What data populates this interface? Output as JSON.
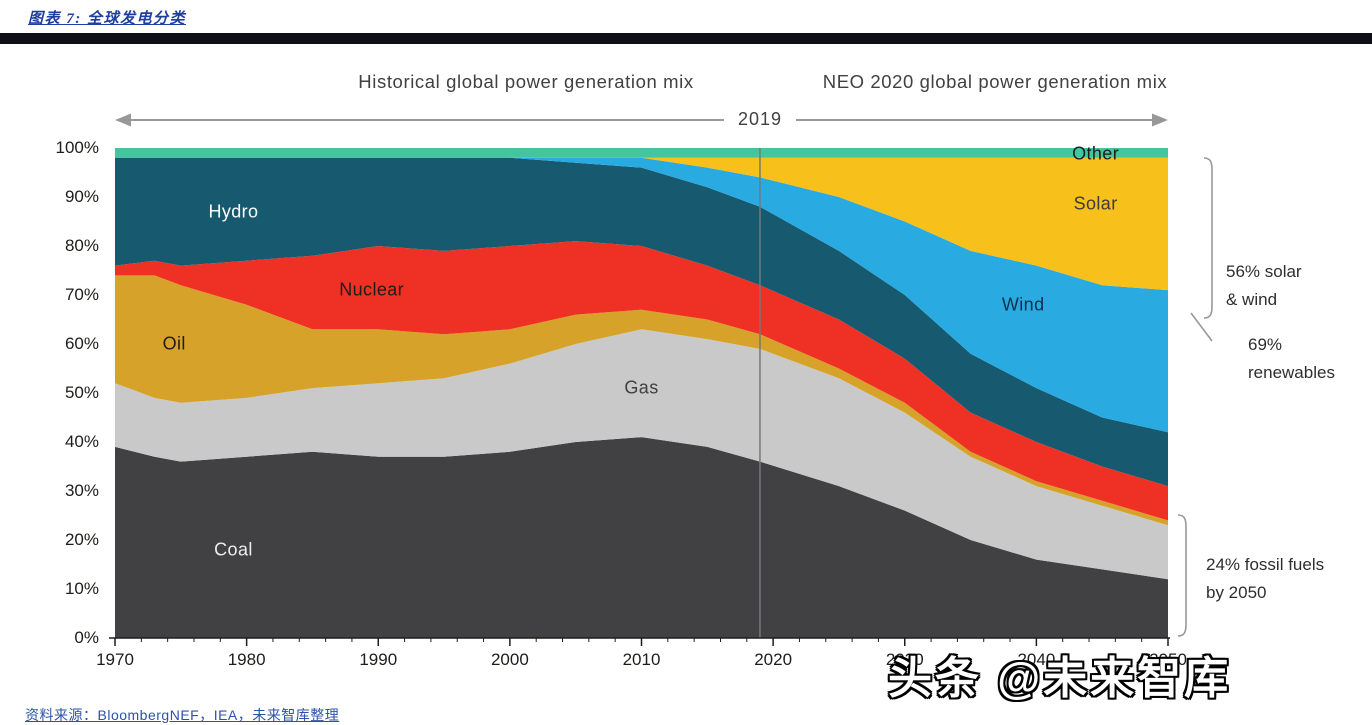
{
  "header": {
    "figure_title": "图表 7: 全球发电分类"
  },
  "chart_data": {
    "type": "area",
    "stacked": true,
    "title_left": "Historical global power generation mix",
    "title_right": "NEO 2020  global power generation mix",
    "divider_label": "2019",
    "divider_year": 2019,
    "xlim": [
      1970,
      2050
    ],
    "ylim": [
      0,
      100
    ],
    "x_ticks": [
      "1970",
      "1980",
      "1990",
      "2000",
      "2010",
      "2020",
      "2030",
      "2040",
      "2050"
    ],
    "y_ticks": [
      "100%",
      "90%",
      "80%",
      "70%",
      "60%",
      "50%",
      "40%",
      "30%",
      "20%",
      "10%",
      "0%"
    ],
    "x": [
      1970,
      1973,
      1975,
      1980,
      1985,
      1990,
      1995,
      2000,
      2005,
      2010,
      2015,
      2019,
      2025,
      2030,
      2035,
      2040,
      2045,
      2050
    ],
    "series": [
      {
        "name": "Coal",
        "color": "#414042",
        "values": [
          39,
          37,
          36,
          37,
          38,
          37,
          37,
          38,
          40,
          41,
          39,
          36,
          31,
          26,
          20,
          16,
          14,
          12
        ]
      },
      {
        "name": "Gas",
        "color": "#c9c9c9",
        "values": [
          13,
          12,
          12,
          12,
          13,
          15,
          16,
          18,
          20,
          22,
          22,
          23,
          22,
          20,
          17,
          15,
          13,
          11
        ]
      },
      {
        "name": "Oil",
        "color": "#d7a229",
        "values": [
          22,
          25,
          24,
          19,
          12,
          11,
          9,
          7,
          6,
          4,
          4,
          3,
          2,
          2,
          1,
          1,
          1,
          1
        ]
      },
      {
        "name": "Nuclear",
        "color": "#ee3124",
        "values": [
          2,
          3,
          4,
          9,
          15,
          17,
          17,
          17,
          15,
          13,
          11,
          10,
          10,
          9,
          8,
          8,
          7,
          7
        ]
      },
      {
        "name": "Hydro",
        "color": "#17596e",
        "values": [
          22,
          21,
          22,
          21,
          20,
          18,
          19,
          18,
          16,
          16,
          16,
          16,
          14,
          13,
          12,
          11,
          10,
          11
        ]
      },
      {
        "name": "Wind",
        "color": "#29abe2",
        "values": [
          0,
          0,
          0,
          0,
          0,
          0,
          0,
          0,
          1,
          2,
          4,
          6,
          11,
          15,
          21,
          25,
          27,
          29
        ]
      },
      {
        "name": "Solar",
        "color": "#f8c01a",
        "values": [
          0,
          0,
          0,
          0,
          0,
          0,
          0,
          0,
          0,
          0,
          2,
          4,
          8,
          13,
          19,
          22,
          26,
          27
        ]
      },
      {
        "name": "Other",
        "color": "#43c59e",
        "values": [
          2,
          2,
          2,
          2,
          2,
          2,
          2,
          2,
          2,
          2,
          2,
          2,
          2,
          2,
          2,
          2,
          2,
          2
        ]
      }
    ],
    "area_labels": [
      {
        "text": "Hydro",
        "x": 1979,
        "y": 87,
        "color": "#ffffff"
      },
      {
        "text": "Nuclear",
        "x": 1989.5,
        "y": 71,
        "color": "#1d1d1b"
      },
      {
        "text": "Oil",
        "x": 1974.5,
        "y": 60,
        "color": "#1d1d1b"
      },
      {
        "text": "Gas",
        "x": 2010,
        "y": 51,
        "color": "#414042"
      },
      {
        "text": "Coal",
        "x": 1979,
        "y": 18,
        "color": "#ededed"
      },
      {
        "text": "Wind",
        "x": 2039,
        "y": 68,
        "color": "#0d3050"
      },
      {
        "text": "Solar",
        "x": 2044.5,
        "y": 88.5,
        "color": "#3c3c3c"
      },
      {
        "text": "Other",
        "x": 2044.5,
        "y": 98.7,
        "color": "#1d1d1b"
      }
    ],
    "annotations": [
      {
        "text": "56% solar\n& wind"
      },
      {
        "text": "69%\nrenewables"
      },
      {
        "text": "24% fossil fuels\nby 2050"
      }
    ]
  },
  "footer": {
    "source_note": "资料来源：BloombergNEF，IEA，未来智库整理",
    "watermark": "头条 @未来智库"
  }
}
